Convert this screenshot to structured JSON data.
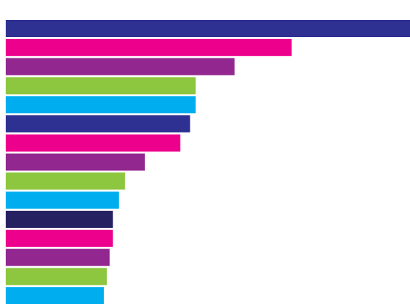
{
  "chart_data": {
    "type": "bar",
    "orientation": "horizontal",
    "title": "",
    "xlabel": "",
    "ylabel": "",
    "xlim": [
      0,
      100
    ],
    "grid": false,
    "legend": "none",
    "values": [
      100,
      70.7,
      56.6,
      47.0,
      47.0,
      45.6,
      43.2,
      34.4,
      29.5,
      28.0,
      26.5,
      26.5,
      25.7,
      25.0,
      24.3
    ],
    "colors": [
      "#2e3192",
      "#ec008c",
      "#92278f",
      "#8dc63f",
      "#00aeef",
      "#2e3192",
      "#ec008c",
      "#92278f",
      "#8dc63f",
      "#00aeef",
      "#262262",
      "#ec008c",
      "#92278f",
      "#8dc63f",
      "#00aeef"
    ]
  }
}
